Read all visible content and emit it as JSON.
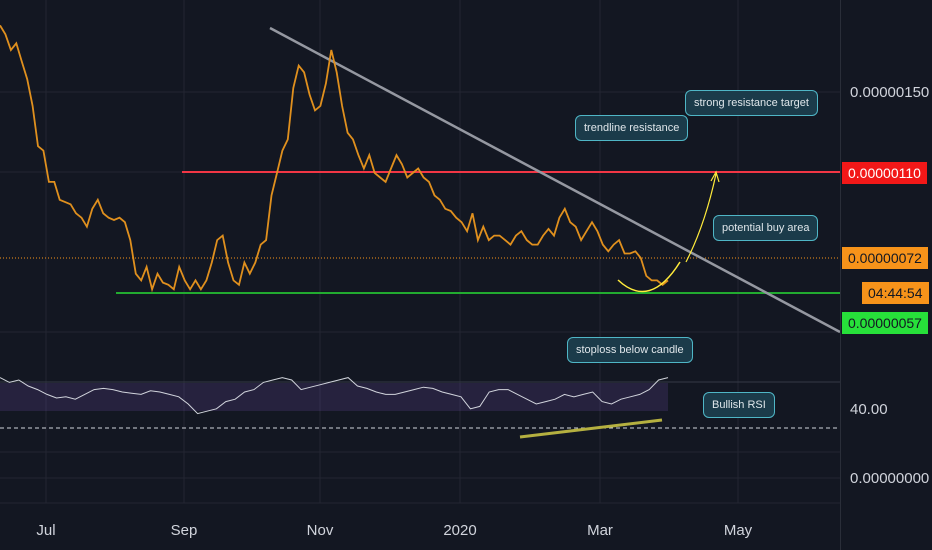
{
  "chart_data": {
    "type": "line",
    "x_ticks": [
      "Jul",
      "Sep",
      "Nov",
      "2020",
      "Mar",
      "May"
    ],
    "price_axis_ticks": [
      "0.00000150"
    ],
    "rsi_axis_ticks": [
      "40.00",
      "0.00000000"
    ],
    "price_levels": {
      "red_resistance": "0.00000110",
      "current": "0.00000072",
      "countdown": "04:44:54",
      "green_support": "0.00000057"
    },
    "series": [
      {
        "values": [
          176,
          172,
          165,
          168,
          160,
          152,
          140,
          122,
          120,
          106,
          106,
          98,
          97,
          96,
          92,
          90,
          86,
          94,
          98,
          92,
          90,
          89,
          90,
          88,
          80,
          65,
          62,
          68,
          58,
          65,
          61,
          60,
          58,
          68,
          62,
          58,
          62,
          58,
          62,
          70,
          80,
          82,
          70,
          62,
          60,
          70,
          65,
          70,
          78,
          80,
          100,
          110,
          120,
          125,
          148,
          158,
          155,
          145,
          138,
          140,
          150,
          165,
          155,
          140,
          128,
          125,
          118,
          112,
          118,
          110,
          108,
          106,
          112,
          118,
          114,
          108,
          110,
          112,
          108,
          106,
          100,
          98,
          94,
          93,
          90,
          88,
          84,
          92,
          80,
          86,
          80,
          82,
          82,
          80,
          78,
          82,
          84,
          80,
          78,
          78,
          82,
          85,
          82,
          90,
          94,
          88,
          86,
          80,
          84,
          88,
          84,
          78,
          75,
          78,
          80,
          74,
          74,
          75,
          72,
          64,
          62,
          62,
          60,
          62
        ]
      }
    ],
    "rsi_values": [
      62,
      58,
      60,
      55,
      52,
      48,
      45,
      46,
      44,
      48,
      52,
      53,
      52,
      50,
      49,
      48,
      51,
      50,
      48,
      46,
      40,
      32,
      34,
      36,
      42,
      44,
      50,
      52,
      58,
      60,
      62,
      60,
      52,
      54,
      56,
      58,
      60,
      62,
      55,
      53,
      50,
      48,
      48,
      50,
      52,
      54,
      53,
      50,
      48,
      46,
      36,
      38,
      50,
      52,
      52,
      48,
      44,
      40,
      42,
      44,
      48,
      46,
      48,
      50,
      42,
      40,
      44,
      46,
      48,
      52,
      60,
      62
    ],
    "rsi_signal_level": "40.00",
    "annotations": {
      "trendline": "trendline resistance",
      "target": "strong resistance target",
      "buy_area": "potential buy area",
      "stoploss": "stoploss below candle",
      "rsi": "Bullish RSI"
    },
    "colors": {
      "price_line": "#e0901e",
      "red_line": "#f23645",
      "green_line": "#22ab30",
      "trendline": "#9598a1",
      "rsi_line": "#d1d4dc",
      "rsi_band": "#7e57c2",
      "rsi_trend": "#b5b040",
      "curve": "#ffeb3b",
      "badge_current": "#f7931a",
      "badge_countdown": "#f7931a",
      "badge_green": "#27e03a",
      "badge_red": "#f21818"
    }
  }
}
